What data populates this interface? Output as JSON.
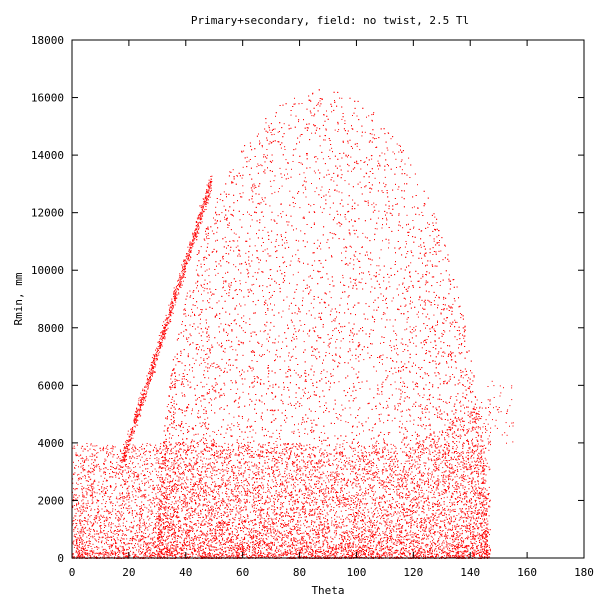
{
  "chart_data": {
    "type": "scatter",
    "title": "Primary+secondary, field: no twist, 2.5 Tl",
    "xlabel": "Theta",
    "ylabel": "Rmin, mm",
    "xlim": [
      0,
      180
    ],
    "ylim": [
      0,
      18000
    ],
    "xticks": [
      "0",
      "20",
      "40",
      "60",
      "80",
      "100",
      "120",
      "140",
      "160",
      "180"
    ],
    "yticks": [
      "0",
      "2000",
      "4000",
      "6000",
      "8000",
      "10000",
      "12000",
      "14000",
      "16000",
      "18000"
    ],
    "grid": false,
    "legend": "none",
    "colors": {
      "points": "#ff0000",
      "frame": "#000000"
    },
    "series": [
      {
        "description_free": true,
        "regions": [
          {
            "x_range": [
              0,
              148
            ],
            "y_range": [
              0,
              4000
            ],
            "density": "very high"
          },
          {
            "x_range": [
              45,
              145
            ],
            "y_range": [
              4000,
              16000
            ],
            "density": "high",
            "envelope_peak_x": 85,
            "envelope_peak_y": 16200
          },
          {
            "x_range": [
              20,
              50
            ],
            "y_range": [
              4000,
              13300
            ],
            "density": "streak",
            "slope_approx": 310
          },
          {
            "x_range": [
              145,
              155
            ],
            "y_range": [
              4000,
              6200
            ],
            "density": "sparse"
          }
        ],
        "max_observed": {
          "x": 85,
          "y": 17000
        }
      }
    ]
  }
}
